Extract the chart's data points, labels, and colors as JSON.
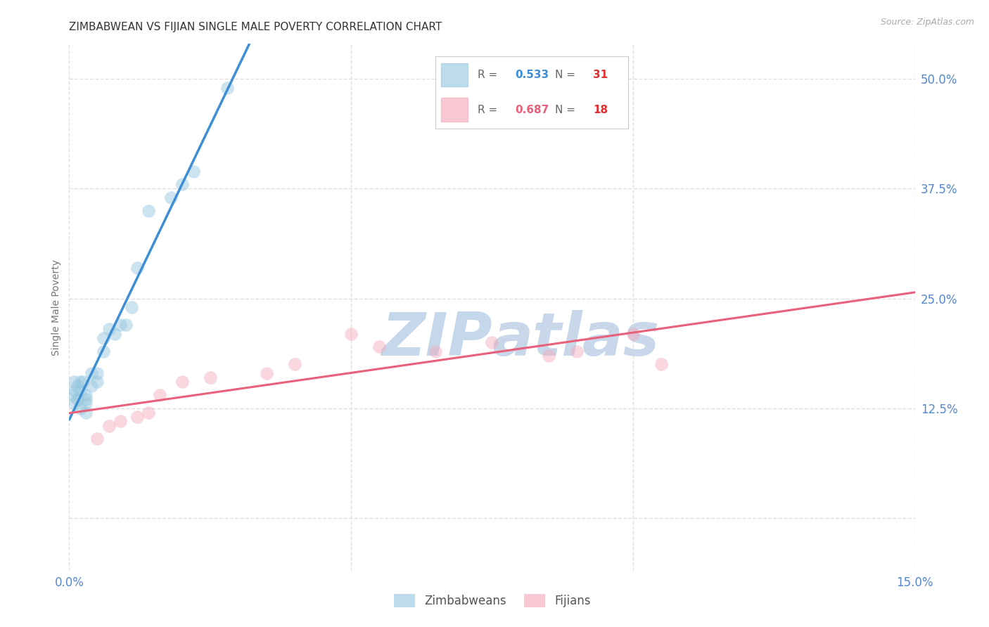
{
  "title": "ZIMBABWEAN VS FIJIAN SINGLE MALE POVERTY CORRELATION CHART",
  "source": "Source: ZipAtlas.com",
  "ylabel": "Single Male Poverty",
  "xlim": [
    0.0,
    0.15
  ],
  "ylim": [
    -0.06,
    0.54
  ],
  "yticks": [
    0.0,
    0.125,
    0.25,
    0.375,
    0.5
  ],
  "ytick_labels": [
    "",
    "12.5%",
    "25.0%",
    "37.5%",
    "50.0%"
  ],
  "xtick_labels": [
    "0.0%",
    "",
    "",
    "15.0%"
  ],
  "zimbabwean_x": [
    0.0005,
    0.0008,
    0.001,
    0.001,
    0.0015,
    0.0015,
    0.002,
    0.002,
    0.002,
    0.0025,
    0.003,
    0.003,
    0.003,
    0.003,
    0.004,
    0.004,
    0.005,
    0.005,
    0.006,
    0.006,
    0.007,
    0.008,
    0.009,
    0.01,
    0.011,
    0.012,
    0.014,
    0.018,
    0.02,
    0.022,
    0.028
  ],
  "zimbabwean_y": [
    0.14,
    0.155,
    0.13,
    0.145,
    0.135,
    0.15,
    0.125,
    0.145,
    0.155,
    0.155,
    0.12,
    0.13,
    0.135,
    0.14,
    0.15,
    0.165,
    0.155,
    0.165,
    0.19,
    0.205,
    0.215,
    0.21,
    0.22,
    0.22,
    0.24,
    0.285,
    0.35,
    0.365,
    0.38,
    0.395,
    0.49
  ],
  "fijian_x": [
    0.005,
    0.007,
    0.009,
    0.012,
    0.014,
    0.016,
    0.02,
    0.025,
    0.035,
    0.04,
    0.05,
    0.055,
    0.065,
    0.075,
    0.085,
    0.09,
    0.1,
    0.105
  ],
  "fijian_y": [
    0.09,
    0.105,
    0.11,
    0.115,
    0.12,
    0.14,
    0.155,
    0.16,
    0.165,
    0.175,
    0.21,
    0.195,
    0.19,
    0.2,
    0.185,
    0.19,
    0.21,
    0.175
  ],
  "zimbabwean_color": "#92c5de",
  "fijian_color": "#f4a5b8",
  "zimbabwean_line_color": "#3d8ed4",
  "fijian_line_color": "#e8607a",
  "dashed_line_color": "#b0c8e0",
  "watermark_zip_color": "#c5d8eb",
  "watermark_atlas_color": "#c8d8ea",
  "background_color": "#ffffff",
  "grid_color": "#e0e0e0",
  "tick_color": "#5588cc",
  "title_fontsize": 11,
  "legend_R_color_z": "#3d8ed4",
  "legend_R_color_f": "#e8607a",
  "legend_N_color": "#e03030",
  "R_zimbabwean": "0.533",
  "N_zimbabwean": "31",
  "R_fijian": "0.687",
  "N_fijian": "18"
}
